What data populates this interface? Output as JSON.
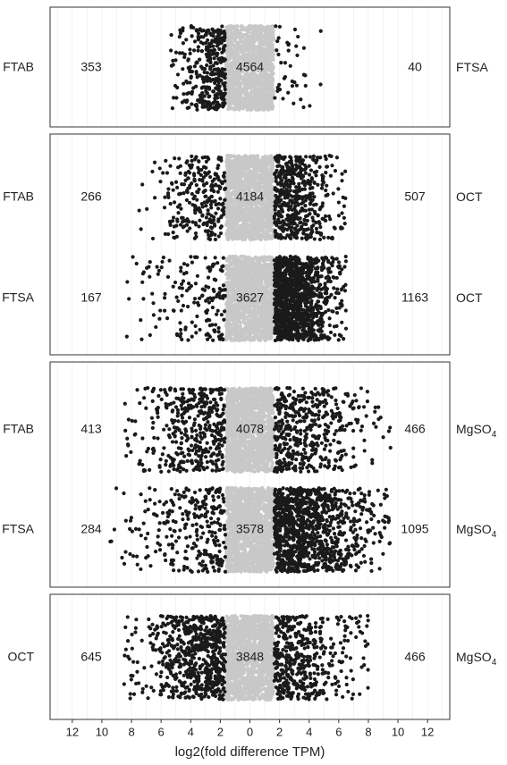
{
  "chart_data": {
    "type": "scatter",
    "xlabel": "log2(fold difference TPM)",
    "xlim": [
      -13.5,
      13.5
    ],
    "x_ticks": [
      -12,
      -10,
      -8,
      -6,
      -4,
      -2,
      0,
      2,
      4,
      6,
      8,
      10,
      12
    ],
    "x_tick_labels": [
      "12",
      "10",
      "8",
      "6",
      "4",
      "2",
      "0",
      "2",
      "4",
      "6",
      "8",
      "10",
      "12"
    ],
    "grid": true,
    "colors": {
      "significant": "#1a1a1a",
      "nonsignificant": "#c8c8c8",
      "panel_border": "#333333",
      "grid": "#ebebeb"
    },
    "panels": [
      {
        "rows": [
          {
            "left_label": "FTAB",
            "right_label": "FTSA",
            "right_sub": "",
            "counts": {
              "left": "353",
              "middle": "4564",
              "right": "40"
            },
            "left_n": 353,
            "middle_n": 4564,
            "right_n": 40,
            "left_extent": 5.5,
            "right_extent": 5.0
          }
        ]
      },
      {
        "rows": [
          {
            "left_label": "FTAB",
            "right_label": "OCT",
            "right_sub": "",
            "counts": {
              "left": "266",
              "middle": "4184",
              "right": "507"
            },
            "left_n": 266,
            "middle_n": 4184,
            "right_n": 507,
            "left_extent": 7.5,
            "right_extent": 6.5
          },
          {
            "left_label": "FTSA",
            "right_label": "OCT",
            "right_sub": "",
            "counts": {
              "left": "167",
              "middle": "3627",
              "right": "1163"
            },
            "left_n": 167,
            "middle_n": 3627,
            "right_n": 1163,
            "left_extent": 8.5,
            "right_extent": 6.5
          }
        ]
      },
      {
        "rows": [
          {
            "left_label": "FTAB",
            "right_label": "MgSO",
            "right_sub": "4",
            "counts": {
              "left": "413",
              "middle": "4078",
              "right": "466"
            },
            "left_n": 413,
            "middle_n": 4078,
            "right_n": 466,
            "left_extent": 8.5,
            "right_extent": 9.5
          },
          {
            "left_label": "FTSA",
            "right_label": "MgSO",
            "right_sub": "4",
            "counts": {
              "left": "284",
              "middle": "3578",
              "right": "1095"
            },
            "left_n": 284,
            "middle_n": 3578,
            "right_n": 1095,
            "left_extent": 9.5,
            "right_extent": 9.5
          }
        ]
      },
      {
        "rows": [
          {
            "left_label": "OCT",
            "right_label": "MgSO",
            "right_sub": "4",
            "counts": {
              "left": "645",
              "middle": "3848",
              "right": "466"
            },
            "left_n": 645,
            "middle_n": 3848,
            "right_n": 466,
            "left_extent": 8.5,
            "right_extent": 8.0
          }
        ]
      }
    ]
  }
}
